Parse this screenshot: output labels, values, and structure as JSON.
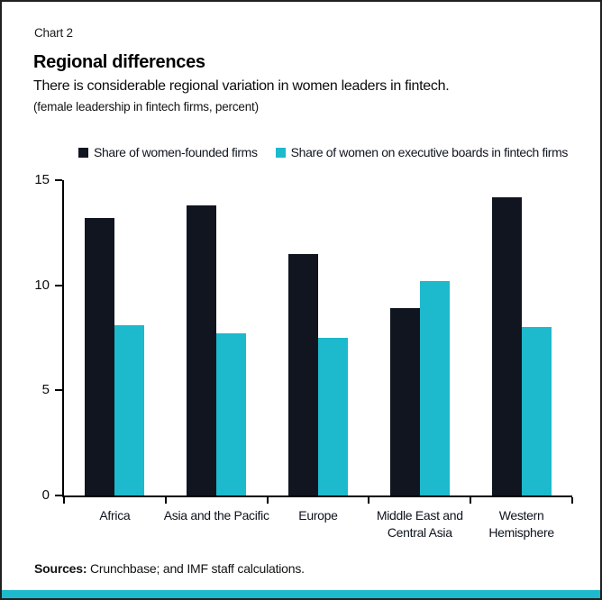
{
  "header": {
    "chart_label": "Chart 2",
    "title": "Regional differences",
    "subtitle": "There is considerable regional variation in women leaders in fintech.",
    "unit_note": "(female leadership in fintech firms, percent)"
  },
  "footer": {
    "sources_label": "Sources:",
    "sources_text": " Crunchbase; and IMF staff calculations."
  },
  "colors": {
    "dark_navy": "#10151f",
    "teal": "#1db9cc",
    "axis": "#000000",
    "bottom_strip": "#1db9cc"
  },
  "chart_data": {
    "type": "bar",
    "title": "Regional differences",
    "subtitle": "There is considerable regional variation in women leaders in fintech.",
    "unit": "percent",
    "categories": [
      "Africa",
      "Asia and the Pacific",
      "Europe",
      "Middle East and\nCentral Asia",
      "Western\nHemisphere"
    ],
    "series": [
      {
        "key": "women-founded-firms",
        "name": "Share of women-founded firms",
        "color": "#10151f",
        "values": [
          13.2,
          13.8,
          11.5,
          8.9,
          14.2
        ]
      },
      {
        "key": "women-exec-boards",
        "name": "Share of women on executive boards in fintech firms",
        "color": "#1db9cc",
        "values": [
          8.1,
          7.7,
          7.5,
          10.2,
          8.0
        ]
      }
    ],
    "ylim": [
      0,
      15
    ],
    "yticks": [
      0,
      5,
      10,
      15
    ],
    "grid": false,
    "legend_position": "top"
  }
}
